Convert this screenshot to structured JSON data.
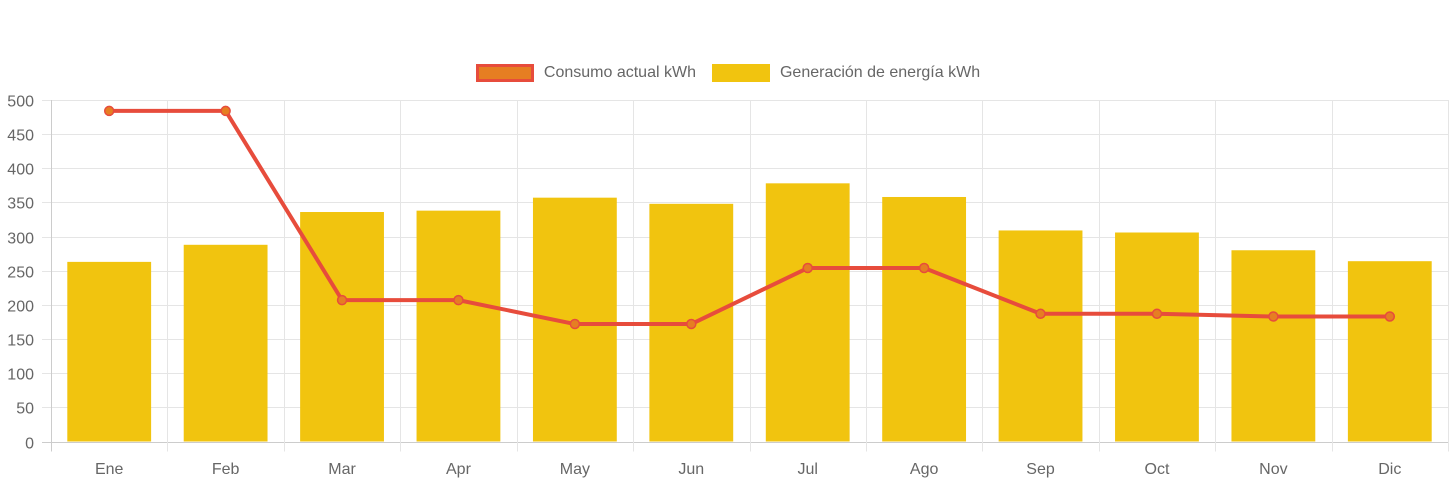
{
  "chart_data": {
    "type": "bar",
    "title": "",
    "xlabel": "",
    "ylabel": "",
    "categories": [
      "Ene",
      "Feb",
      "Mar",
      "Apr",
      "May",
      "Jun",
      "Jul",
      "Ago",
      "Sep",
      "Oct",
      "Nov",
      "Dic"
    ],
    "ylim": [
      0,
      500
    ],
    "yticks": [
      0,
      50,
      100,
      150,
      200,
      250,
      300,
      350,
      400,
      450,
      500
    ],
    "grid": true,
    "legend_position": "top-center",
    "series": [
      {
        "name": "Consumo actual kWh",
        "type": "line",
        "color": "#e74c3c",
        "point_color": "#e67e22",
        "values": [
          484,
          484,
          207,
          207,
          172,
          172,
          254,
          254,
          187,
          187,
          183,
          183
        ]
      },
      {
        "name": "Generación de energía kWh",
        "type": "bar",
        "color": "#f1c40f",
        "values": [
          263,
          288,
          336,
          338,
          357,
          348,
          378,
          358,
          309,
          306,
          280,
          264
        ]
      }
    ]
  }
}
